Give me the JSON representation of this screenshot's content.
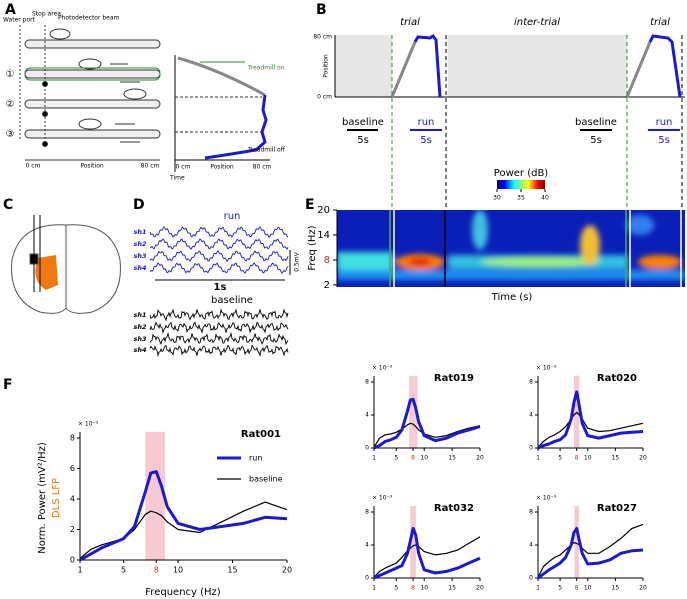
{
  "panel_labels": [
    "A",
    "B",
    "C",
    "D",
    "E",
    "F"
  ],
  "panel_a": {
    "water_port": "Water port",
    "stop_area": "Stop area",
    "photodetector": "Photodetector beam",
    "steps": [
      "①",
      "②",
      "③"
    ],
    "track_axis": {
      "start": "0 cm",
      "label": "Position",
      "end": "80 cm"
    },
    "treadmill_on": "Treadmill on",
    "treadmill_off": "Treadmill off",
    "time_label": "Time",
    "plot_axis": {
      "start": "0 cm",
      "label": "Position",
      "end": "80 cm"
    }
  },
  "panel_b": {
    "phases": [
      "trial",
      "inter-trial",
      "trial"
    ],
    "y_top": "80 cm",
    "y_label": "Position",
    "y_bottom": "0 cm",
    "scale_bars": [
      {
        "label": "baseline",
        "duration": "5s"
      },
      {
        "label": "run",
        "duration": "5s"
      },
      {
        "label": "baseline",
        "duration": "5s"
      },
      {
        "label": "run",
        "duration": "5s"
      }
    ]
  },
  "panel_d": {
    "run_title": "run",
    "baseline_title": "baseline",
    "channels": [
      "sh1",
      "sh2",
      "sh3",
      "sh4"
    ],
    "time_scale": "1s",
    "voltage_scale": "0.5mV"
  },
  "panel_e": {
    "colorbar_title": "Power (dB)",
    "clim": [
      30,
      40
    ],
    "cticks": [
      30,
      35,
      40
    ],
    "y_label": "Freq (Hz)",
    "ylim": [
      1.5,
      20
    ],
    "yticks": [
      20,
      14,
      8,
      2
    ],
    "x_label": "Time (s)"
  },
  "panel_f": {
    "y_label": "Norm. Power (mV²/Hz)",
    "region_label": "DLS LFP",
    "x_label": "Frequency (Hz)"
  },
  "chart_data": [
    {
      "type": "line",
      "title": "Rat001",
      "exponent": "× 10⁻³",
      "legend": "right",
      "highlight_band": [
        7,
        8.8
      ],
      "highlight_color": "#f4b3bb",
      "tick_highlight_color": "#d62728",
      "xlim": [
        1,
        20
      ],
      "ylim": [
        0,
        8
      ],
      "xticks": [
        1,
        5,
        8,
        10,
        15,
        20
      ],
      "yticks": [
        0,
        2,
        4,
        6,
        8
      ],
      "x": [
        1,
        2,
        3,
        4,
        5,
        6,
        7,
        7.5,
        8,
        8.5,
        9,
        10,
        12,
        14,
        16,
        18,
        20
      ],
      "series": [
        {
          "name": "run",
          "color": "#1a1ad6",
          "values": [
            0,
            0.4,
            0.8,
            1.1,
            1.4,
            2.2,
            4.5,
            5.7,
            5.8,
            4.8,
            3.5,
            2.4,
            2.0,
            2.2,
            2.4,
            2.8,
            2.7
          ]
        },
        {
          "name": "baseline",
          "color": "#000000",
          "values": [
            0.1,
            0.7,
            1.0,
            1.2,
            1.4,
            2.0,
            3.0,
            3.2,
            3.1,
            2.9,
            2.5,
            2.0,
            1.8,
            2.5,
            3.2,
            3.8,
            3.3
          ]
        }
      ]
    },
    {
      "type": "line",
      "title": "Rat019",
      "exponent": "× 10⁻³",
      "highlight_band": [
        7.3,
        8.8
      ],
      "highlight_color": "#f4b3bb",
      "tick_highlight_color": "#d62728",
      "xlim": [
        1,
        20
      ],
      "ylim": [
        0,
        8
      ],
      "xticks": [
        1,
        5,
        8,
        10,
        15,
        20
      ],
      "yticks": [
        0,
        4,
        8
      ],
      "x": [
        1,
        2,
        3,
        4,
        5,
        6,
        7,
        7.5,
        8,
        8.5,
        9,
        10,
        12,
        14,
        16,
        18,
        20
      ],
      "series": [
        {
          "color": "#1a1ad6",
          "values": [
            0,
            0.3,
            0.8,
            1.0,
            1.3,
            2.2,
            4.5,
            5.8,
            5.9,
            4.8,
            3.2,
            1.5,
            0.9,
            1.2,
            1.8,
            2.2,
            2.6
          ]
        },
        {
          "color": "#000000",
          "values": [
            0.1,
            1.2,
            1.6,
            1.7,
            1.9,
            2.3,
            2.8,
            3.0,
            2.9,
            2.6,
            2.2,
            1.7,
            1.3,
            1.5,
            2.0,
            2.4,
            2.7
          ]
        }
      ]
    },
    {
      "type": "line",
      "title": "Rat020",
      "exponent": "× 10⁻³",
      "highlight_band": [
        7.5,
        8.5
      ],
      "highlight_color": "#f4b3bb",
      "tick_highlight_color": "#d62728",
      "xlim": [
        1,
        20
      ],
      "ylim": [
        0,
        8
      ],
      "xticks": [
        1,
        5,
        8,
        10,
        15,
        20
      ],
      "yticks": [
        0,
        4,
        8
      ],
      "x": [
        1,
        2,
        3,
        4,
        5,
        6,
        7,
        7.5,
        8,
        8.5,
        9,
        10,
        12,
        14,
        16,
        18,
        20
      ],
      "series": [
        {
          "color": "#1a1ad6",
          "values": [
            0,
            0.3,
            0.5,
            0.8,
            1.0,
            1.6,
            3.5,
            5.5,
            6.8,
            5.0,
            3.0,
            1.5,
            1.2,
            1.5,
            1.8,
            1.9,
            2.0
          ]
        },
        {
          "color": "#000000",
          "values": [
            0.1,
            0.8,
            1.3,
            1.6,
            2.0,
            2.6,
            3.5,
            4.0,
            4.3,
            4.0,
            3.5,
            2.4,
            2.0,
            2.1,
            2.4,
            2.7,
            3.0
          ]
        }
      ]
    },
    {
      "type": "line",
      "title": "Rat032",
      "exponent": "× 10⁻³",
      "highlight_band": [
        7.5,
        8.5
      ],
      "highlight_color": "#f4b3bb",
      "tick_highlight_color": "#d62728",
      "xlim": [
        1,
        20
      ],
      "ylim": [
        0,
        8
      ],
      "xticks": [
        1,
        5,
        8,
        10,
        15,
        20
      ],
      "yticks": [
        0,
        4,
        8
      ],
      "x": [
        1,
        2,
        3,
        4,
        5,
        6,
        7,
        7.5,
        8,
        8.5,
        9,
        10,
        12,
        14,
        16,
        18,
        20
      ],
      "series": [
        {
          "color": "#1a1ad6",
          "values": [
            0,
            0.3,
            0.6,
            0.9,
            1.2,
            1.5,
            3.0,
            4.5,
            6.0,
            5.2,
            3.0,
            1.0,
            0.6,
            0.8,
            1.2,
            1.8,
            2.4
          ]
        },
        {
          "color": "#000000",
          "values": [
            0.1,
            0.8,
            1.2,
            1.5,
            1.8,
            2.5,
            3.3,
            3.6,
            3.9,
            4.0,
            3.8,
            3.2,
            2.8,
            3.0,
            3.4,
            4.2,
            5.0
          ]
        }
      ]
    },
    {
      "type": "line",
      "title": "Rat027",
      "exponent": "× 10⁻³",
      "highlight_band": [
        7.6,
        8.4
      ],
      "highlight_color": "#f4b3bb",
      "tick_highlight_color": "#d62728",
      "xlim": [
        1,
        20
      ],
      "ylim": [
        0,
        8
      ],
      "xticks": [
        1,
        5,
        8,
        10,
        15,
        20
      ],
      "yticks": [
        0,
        4,
        8
      ],
      "x": [
        1,
        2,
        3,
        4,
        5,
        6,
        7,
        7.5,
        8,
        8.5,
        9,
        10,
        12,
        14,
        16,
        18,
        20
      ],
      "series": [
        {
          "color": "#1a1ad6",
          "values": [
            0,
            0.5,
            1.0,
            1.4,
            1.8,
            2.5,
            4.0,
            5.5,
            6.0,
            4.5,
            3.0,
            1.7,
            1.8,
            2.2,
            3.0,
            3.3,
            3.4
          ]
        },
        {
          "color": "#000000",
          "values": [
            0.1,
            1.4,
            2.0,
            2.5,
            2.8,
            3.4,
            4.0,
            4.3,
            4.2,
            4.0,
            3.6,
            3.0,
            3.0,
            3.8,
            4.8,
            6.0,
            6.5
          ]
        }
      ]
    }
  ]
}
